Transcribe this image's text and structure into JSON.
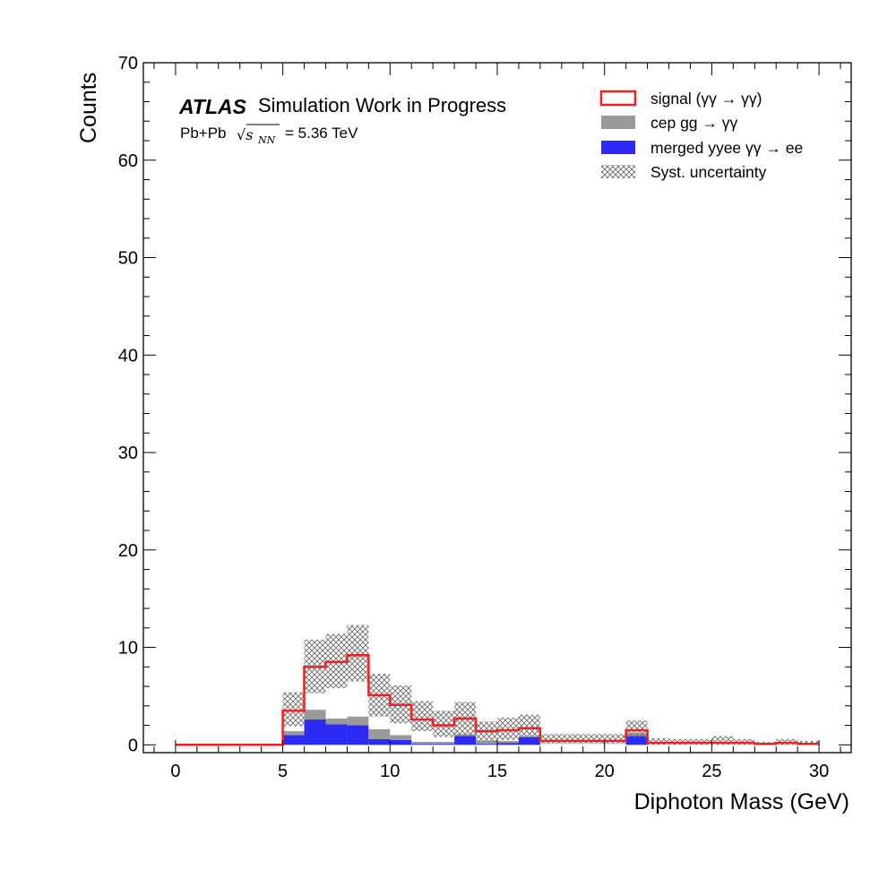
{
  "chart_data": {
    "type": "bar",
    "xlabel": "Diphoton Mass (GeV)",
    "ylabel": "Counts",
    "xlim": [
      -1.5,
      31.5
    ],
    "ylim": [
      -0.8,
      70
    ],
    "x_ticks": [
      "0",
      "5",
      "10",
      "15",
      "20",
      "25",
      "30"
    ],
    "y_ticks": [
      "0",
      "10",
      "20",
      "30",
      "40",
      "50",
      "60",
      "70"
    ],
    "grid": false,
    "legend_position": "top-right",
    "bin_edges": [
      0,
      1,
      2,
      3,
      4,
      5,
      6,
      7,
      8,
      9,
      10,
      11,
      12,
      13,
      14,
      15,
      16,
      17,
      18,
      19,
      20,
      21,
      22,
      23,
      24,
      25,
      26,
      27,
      28,
      29,
      30
    ],
    "series": [
      {
        "name": "signal  (γγ → γγ)",
        "style": "step",
        "values": [
          0,
          0,
          0,
          0,
          0,
          2.1,
          4.4,
          5.8,
          6.3,
          3.5,
          3.1,
          2.3,
          1.7,
          1.6,
          1.0,
          1.1,
          0.8,
          0.4,
          0.4,
          0.4,
          0.4,
          0.3,
          0.2,
          0.2,
          0.2,
          0.2,
          0.2,
          0.1,
          0.2,
          0.1
        ]
      },
      {
        "name": "cep  gg → γγ",
        "style": "filled",
        "values": [
          0,
          0,
          0,
          0,
          0,
          0.4,
          1.0,
          0.6,
          0.9,
          1.0,
          0.5,
          0.2,
          0.2,
          0.2,
          0.3,
          0.2,
          0.1,
          0,
          0,
          0,
          0,
          0.3,
          0,
          0,
          0,
          0,
          0,
          0,
          0,
          0
        ]
      },
      {
        "name": "merged yyee  γγ → ee",
        "style": "filled",
        "values": [
          0,
          0,
          0,
          0,
          0,
          1.0,
          2.6,
          2.1,
          2.0,
          0.6,
          0.5,
          0.1,
          0.1,
          0.9,
          0.1,
          0.2,
          0.8,
          0,
          0,
          0,
          0,
          0.9,
          0,
          0,
          0,
          0,
          0,
          0,
          0,
          0
        ]
      }
    ],
    "uncertainty": {
      "name": "Syst. uncertainty",
      "low": [
        0,
        0,
        0,
        0,
        0,
        1.9,
        5.3,
        5.8,
        6.5,
        2.9,
        2.2,
        1.4,
        0.8,
        1.0,
        0.3,
        0.5,
        0.9,
        0.1,
        0.1,
        0.1,
        0.1,
        0.8,
        0,
        0,
        0,
        0,
        0,
        0,
        0,
        0
      ],
      "high": [
        0,
        0,
        0,
        0,
        0,
        5.4,
        10.8,
        11.4,
        12.3,
        7.3,
        6.1,
        4.5,
        3.5,
        4.4,
        2.4,
        2.8,
        3.1,
        1.1,
        1.1,
        1.1,
        1.1,
        2.5,
        0.7,
        0.6,
        0.6,
        0.9,
        0.6,
        0.3,
        0.6,
        0.4
      ]
    },
    "annotations": {
      "atlas": "ATLAS",
      "atlas_label": "Simulation Work in Progress",
      "system": "Pb+Pb",
      "energy_symbol": "√s",
      "energy_sub": "NN",
      "energy_value": "= 5.36 TeV"
    }
  },
  "colors": {
    "signal": "#ee2222",
    "cep": "#999999",
    "yyee": "#2b2bf5",
    "hatch": "#777777"
  }
}
